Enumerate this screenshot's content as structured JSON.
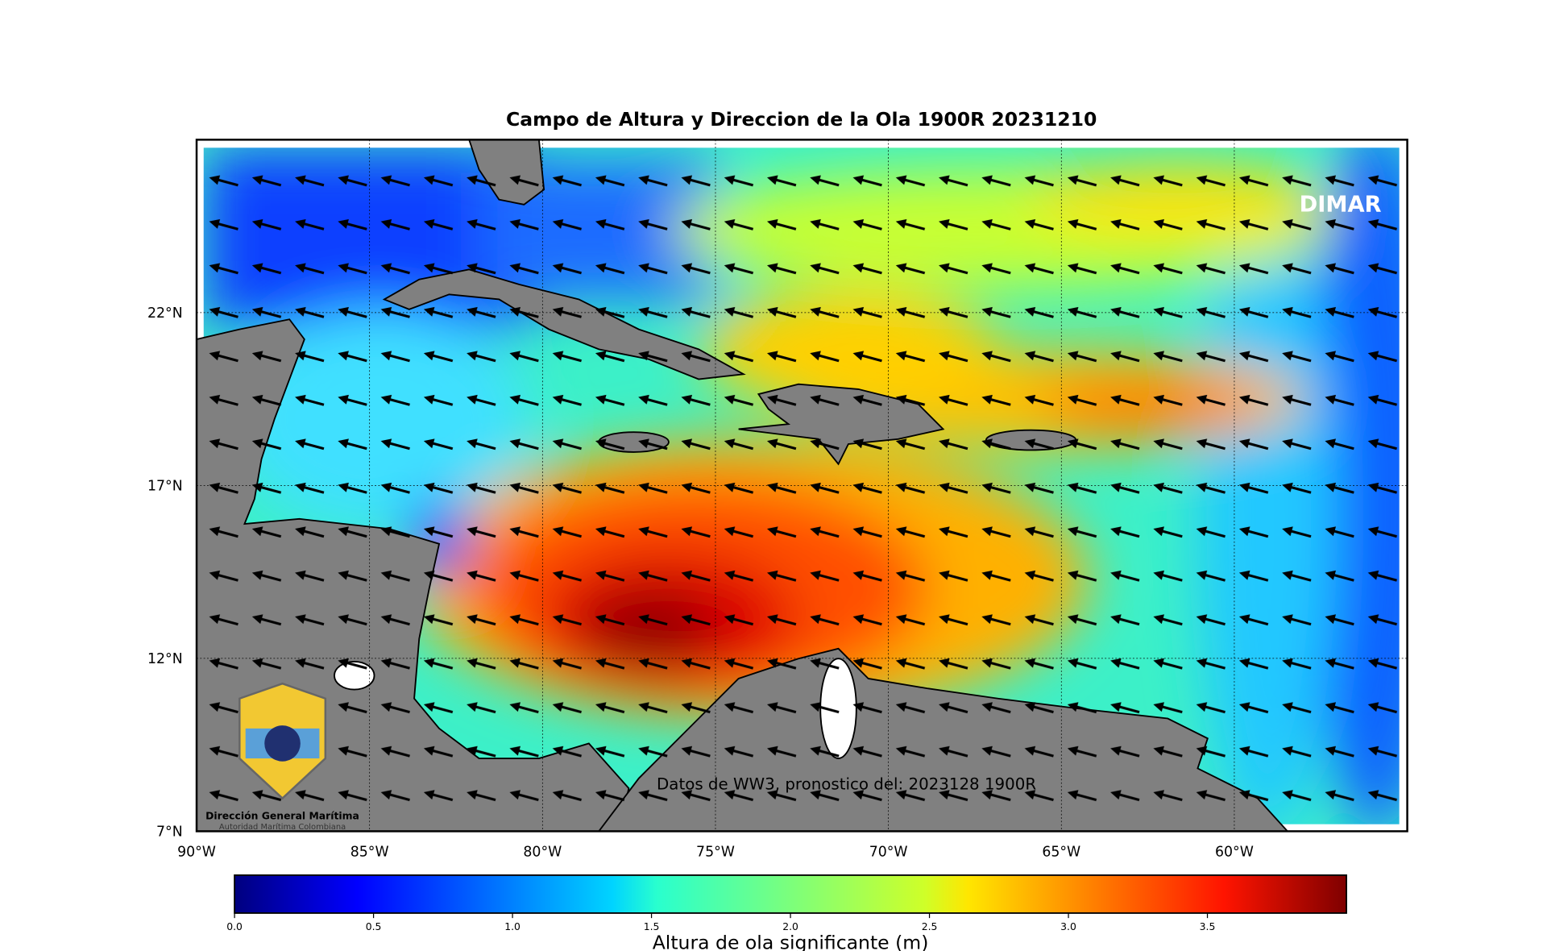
{
  "title": "Campo de Altura y Direccion de la Ola 1900R 20231210",
  "map": {
    "xlim": [
      -90,
      -55
    ],
    "ylim": [
      7,
      27
    ],
    "xticks": [
      {
        "value": -90,
        "label": "90°W"
      },
      {
        "value": -85,
        "label": "85°W"
      },
      {
        "value": -80,
        "label": "80°W"
      },
      {
        "value": -75,
        "label": "75°W"
      },
      {
        "value": -70,
        "label": "70°W"
      },
      {
        "value": -65,
        "label": "65°W"
      },
      {
        "value": -60,
        "label": "60°W"
      }
    ],
    "yticks": [
      {
        "value": 7,
        "label": "7°N"
      },
      {
        "value": 12,
        "label": "12°N"
      },
      {
        "value": 17,
        "label": "17°N"
      },
      {
        "value": 22,
        "label": "22°N"
      }
    ],
    "watermark": "DIMAR",
    "annotation": "Datos de WW3, pronostico del: 2023128 1900R",
    "logo": {
      "name": "Dirección General Marítima",
      "subtitle": "Autoridad Marítima Colombiana"
    }
  },
  "colorbar": {
    "label": "Altura de ola significante (m)",
    "lim": [
      0,
      4
    ],
    "ticks": [
      {
        "value": 0,
        "label": "0.0"
      },
      0.5,
      {
        "value": 1,
        "label": "1.0"
      },
      1.5,
      {
        "value": 2,
        "label": "2.0"
      },
      2.5,
      {
        "value": 3,
        "label": "3.0"
      },
      3.5
    ]
  }
}
